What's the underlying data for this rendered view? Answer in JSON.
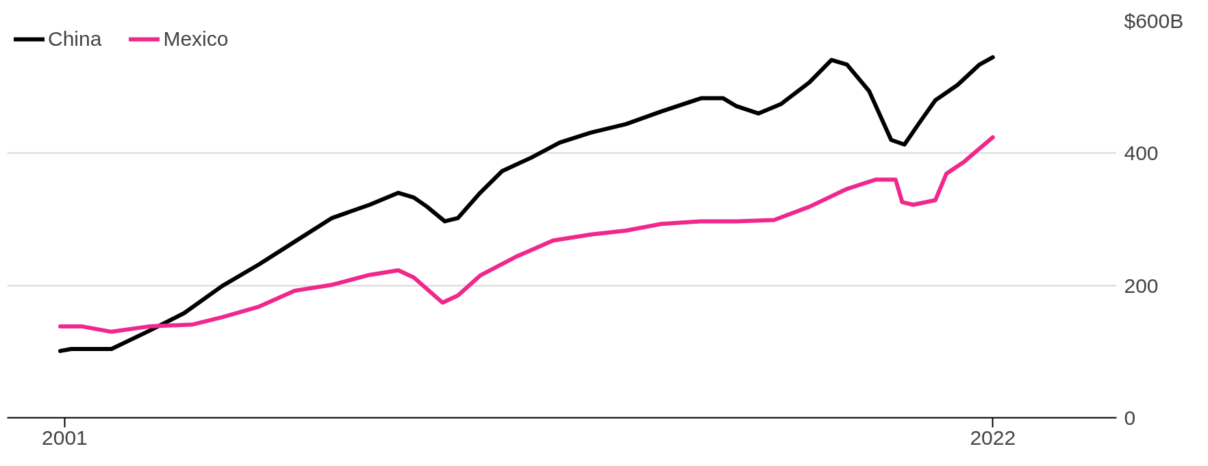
{
  "chart_data": {
    "type": "line",
    "xlim": [
      1999.7,
      2024.8
    ],
    "ylim": [
      0,
      600
    ],
    "xticks": [
      2001,
      2022
    ],
    "yticks": [
      0,
      200,
      400,
      {
        "value": 600,
        "label": "$600B"
      }
    ],
    "grid": "y",
    "legend": "top left",
    "line_style": "solid",
    "marker": "none",
    "series": [
      {
        "name": "China",
        "color": "#000000",
        "x": [
          2000.9,
          2001.15,
          2002.06,
          2002.9,
          2003.7,
          2004.56,
          2005.4,
          2006.2,
          2007.05,
          2007.9,
          2008.55,
          2008.9,
          2009.2,
          2009.6,
          2009.9,
          2010.4,
          2010.9,
          2011.55,
          2012.2,
          2012.9,
          2013.7,
          2014.5,
          2015.4,
          2015.9,
          2016.2,
          2016.7,
          2017.2,
          2017.85,
          2018.35,
          2018.7,
          2019.2,
          2019.7,
          2020.0,
          2020.35,
          2020.7,
          2021.2,
          2021.7,
          2022.0
        ],
        "values": [
          101,
          104,
          104,
          131,
          158,
          199,
          232,
          266,
          302,
          322,
          340,
          333,
          319,
          297,
          302,
          340,
          373,
          393,
          416,
          431,
          444,
          463,
          483,
          483,
          471,
          460,
          474,
          507,
          541,
          534,
          494,
          420,
          413,
          447,
          480,
          503,
          534,
          545
        ]
      },
      {
        "name": "Mexico",
        "color": "#f0288c",
        "x": [
          2000.9,
          2001.4,
          2002.06,
          2002.9,
          2003.9,
          2004.56,
          2005.4,
          2006.2,
          2007.05,
          2007.9,
          2008.55,
          2008.9,
          2009.55,
          2009.9,
          2010.4,
          2011.2,
          2012.05,
          2012.9,
          2013.7,
          2014.5,
          2015.4,
          2016.2,
          2017.05,
          2017.85,
          2018.7,
          2019.35,
          2019.8,
          2019.95,
          2020.2,
          2020.7,
          2020.95,
          2021.35,
          2021.7,
          2022.0
        ],
        "values": [
          138,
          138,
          130,
          138,
          141,
          152,
          168,
          192,
          201,
          216,
          223,
          212,
          174,
          185,
          215,
          243,
          268,
          277,
          283,
          293,
          297,
          297,
          299,
          319,
          346,
          360,
          360,
          326,
          322,
          329,
          369,
          387,
          407,
          424
        ]
      }
    ]
  }
}
